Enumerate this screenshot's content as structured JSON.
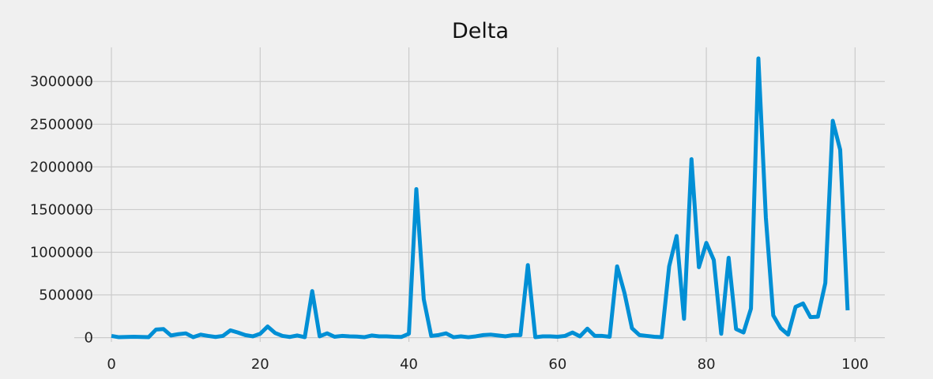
{
  "chart_data": {
    "type": "line",
    "title": "Delta",
    "xlabel": "",
    "ylabel": "",
    "xlim": [
      -5,
      104
    ],
    "ylim": [
      -50000,
      3400000
    ],
    "xticks": [
      0,
      20,
      40,
      60,
      80,
      100
    ],
    "yticks": [
      0,
      500000,
      1000000,
      1500000,
      2000000,
      2500000,
      3000000
    ],
    "grid": true,
    "series": [
      {
        "name": "Delta",
        "color": "#008fd5",
        "x": [
          0,
          1,
          2,
          3,
          4,
          5,
          6,
          7,
          8,
          9,
          10,
          11,
          12,
          13,
          14,
          15,
          16,
          17,
          18,
          19,
          20,
          21,
          22,
          23,
          24,
          25,
          26,
          27,
          28,
          29,
          30,
          31,
          32,
          33,
          34,
          35,
          36,
          37,
          38,
          39,
          40,
          41,
          42,
          43,
          44,
          45,
          46,
          47,
          48,
          49,
          50,
          51,
          52,
          53,
          54,
          55,
          56,
          57,
          58,
          59,
          60,
          61,
          62,
          63,
          64,
          65,
          66,
          67,
          68,
          69,
          70,
          71,
          72,
          73,
          74,
          75,
          76,
          77,
          78,
          79,
          80,
          81,
          82,
          83,
          84,
          85,
          86,
          87,
          88,
          89,
          90,
          91,
          92,
          93,
          94,
          95,
          96,
          97,
          98,
          99
        ],
        "values": [
          20000,
          5000,
          8000,
          10000,
          8000,
          5000,
          95000,
          100000,
          25000,
          40000,
          50000,
          5000,
          35000,
          20000,
          8000,
          20000,
          85000,
          60000,
          30000,
          15000,
          45000,
          130000,
          55000,
          20000,
          8000,
          25000,
          5000,
          545000,
          15000,
          50000,
          10000,
          20000,
          15000,
          12000,
          5000,
          25000,
          15000,
          15000,
          10000,
          8000,
          45000,
          1740000,
          450000,
          20000,
          30000,
          50000,
          5000,
          15000,
          5000,
          15000,
          30000,
          35000,
          25000,
          15000,
          30000,
          30000,
          850000,
          5000,
          15000,
          15000,
          10000,
          20000,
          60000,
          15000,
          105000,
          20000,
          20000,
          10000,
          835000,
          520000,
          110000,
          30000,
          20000,
          10000,
          5000,
          835000,
          1190000,
          220000,
          2090000,
          825000,
          1110000,
          910000,
          45000,
          935000,
          100000,
          60000,
          340000,
          3270000,
          1410000,
          260000,
          110000,
          35000,
          360000,
          400000,
          240000,
          245000,
          640000,
          2540000,
          2200000,
          320000
        ]
      }
    ]
  }
}
